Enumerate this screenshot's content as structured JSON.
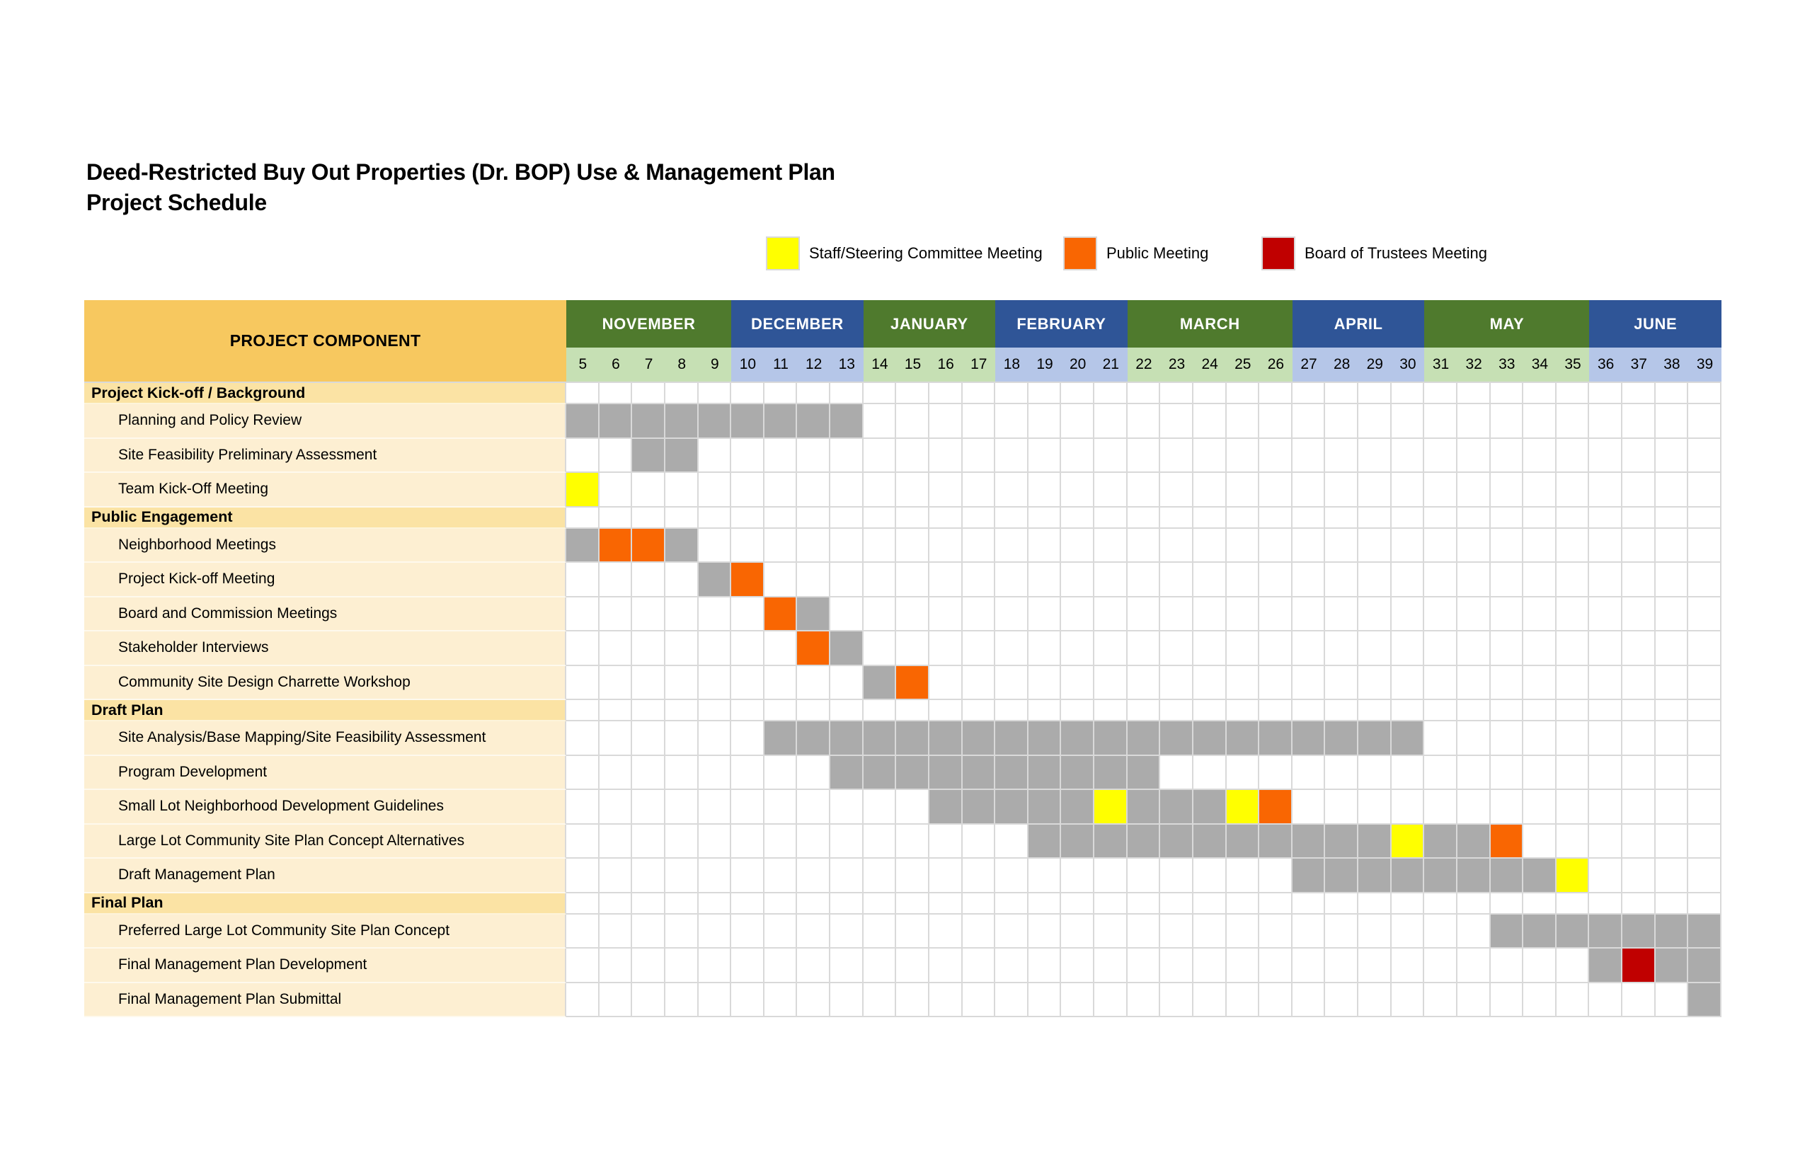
{
  "header": {
    "title_line1": "Deed-Restricted Buy Out Properties (Dr. BOP) Use & Management Plan",
    "title_line2": "Project Schedule"
  },
  "legend": [
    {
      "label": "Staff/Steering Committee Meeting",
      "kind": "staff"
    },
    {
      "label": "Public Meeting",
      "kind": "public"
    },
    {
      "label": "Board of Trustees Meeting",
      "kind": "trustees"
    }
  ],
  "table": {
    "component_header": "PROJECT COMPONENT",
    "months": [
      {
        "name": "NOVEMBER",
        "weeks": [
          5,
          6,
          7,
          8,
          9
        ],
        "theme": "green"
      },
      {
        "name": "DECEMBER",
        "weeks": [
          10,
          11,
          12,
          13
        ],
        "theme": "blue"
      },
      {
        "name": "JANUARY",
        "weeks": [
          14,
          15,
          16,
          17
        ],
        "theme": "green"
      },
      {
        "name": "FEBRUARY",
        "weeks": [
          18,
          19,
          20,
          21
        ],
        "theme": "blue"
      },
      {
        "name": "MARCH",
        "weeks": [
          22,
          23,
          24,
          25,
          26
        ],
        "theme": "green"
      },
      {
        "name": "APRIL",
        "weeks": [
          27,
          28,
          29,
          30
        ],
        "theme": "blue"
      },
      {
        "name": "MAY",
        "weeks": [
          31,
          32,
          33,
          34,
          35
        ],
        "theme": "green"
      },
      {
        "name": "JUNE",
        "weeks": [
          36,
          37,
          38,
          39
        ],
        "theme": "blue"
      }
    ]
  },
  "colors": {
    "month_green": "#4F7A2D",
    "month_blue": "#2F5597",
    "band_green": "#C6E0B4",
    "band_blue": "#B5C6E8",
    "component_header_bg": "#F7C85F",
    "section_bg": "#FBE3A4",
    "task_bg": "#FDEFD2",
    "grid_line": "#D9D9D9",
    "work": "#ABABAB",
    "staff": "#FFFF00",
    "public": "#F96602",
    "trustees": "#C00000"
  },
  "chart_data": {
    "type": "gantt",
    "title": "Deed-Restricted Buy Out Properties (Dr. BOP) Use & Management Plan — Project Schedule",
    "x_axis": {
      "unit": "week",
      "range": [
        5,
        39
      ],
      "months": {
        "NOVEMBER": [
          5,
          9
        ],
        "DECEMBER": [
          10,
          13
        ],
        "JANUARY": [
          14,
          17
        ],
        "FEBRUARY": [
          18,
          21
        ],
        "MARCH": [
          22,
          26
        ],
        "APRIL": [
          27,
          30
        ],
        "MAY": [
          31,
          35
        ],
        "JUNE": [
          36,
          39
        ]
      }
    },
    "legend_position": "top",
    "fill_kinds": {
      "work": "general work period (gray)",
      "staff": "Staff/Steering Committee Meeting (yellow)",
      "public": "Public Meeting (orange)",
      "trustees": "Board of Trustees Meeting (dark red)"
    },
    "sections": [
      {
        "label": "Project Kick-off / Background",
        "tasks": [
          {
            "label": "Planning and Policy Review",
            "fills": [
              {
                "start": 5,
                "end": 13,
                "kind": "work"
              }
            ]
          },
          {
            "label": "Site Feasibility Preliminary Assessment",
            "fills": [
              {
                "start": 7,
                "end": 8,
                "kind": "work"
              }
            ]
          },
          {
            "label": "Team Kick-Off Meeting",
            "fills": [
              {
                "start": 5,
                "end": 5,
                "kind": "staff"
              }
            ]
          }
        ]
      },
      {
        "label": "Public Engagement",
        "tasks": [
          {
            "label": "Neighborhood Meetings",
            "fills": [
              {
                "start": 5,
                "end": 5,
                "kind": "work"
              },
              {
                "start": 6,
                "end": 7,
                "kind": "public"
              },
              {
                "start": 8,
                "end": 8,
                "kind": "work"
              }
            ]
          },
          {
            "label": "Project Kick-off Meeting",
            "fills": [
              {
                "start": 9,
                "end": 9,
                "kind": "work"
              },
              {
                "start": 10,
                "end": 10,
                "kind": "public"
              }
            ]
          },
          {
            "label": "Board and Commission Meetings",
            "fills": [
              {
                "start": 11,
                "end": 11,
                "kind": "public"
              },
              {
                "start": 12,
                "end": 12,
                "kind": "work"
              }
            ]
          },
          {
            "label": "Stakeholder Interviews",
            "fills": [
              {
                "start": 12,
                "end": 12,
                "kind": "public"
              },
              {
                "start": 13,
                "end": 13,
                "kind": "work"
              }
            ]
          },
          {
            "label": "Community Site Design Charrette Workshop",
            "fills": [
              {
                "start": 14,
                "end": 14,
                "kind": "work"
              },
              {
                "start": 15,
                "end": 15,
                "kind": "public"
              }
            ]
          }
        ]
      },
      {
        "label": "Draft Plan",
        "tasks": [
          {
            "label": "Site Analysis/Base Mapping/Site Feasibility Assessment",
            "fills": [
              {
                "start": 11,
                "end": 30,
                "kind": "work"
              }
            ]
          },
          {
            "label": "Program Development",
            "fills": [
              {
                "start": 13,
                "end": 22,
                "kind": "work"
              }
            ]
          },
          {
            "label": "Small Lot Neighborhood Development Guidelines",
            "fills": [
              {
                "start": 16,
                "end": 20,
                "kind": "work"
              },
              {
                "start": 21,
                "end": 21,
                "kind": "staff"
              },
              {
                "start": 22,
                "end": 24,
                "kind": "work"
              },
              {
                "start": 25,
                "end": 25,
                "kind": "staff"
              },
              {
                "start": 26,
                "end": 26,
                "kind": "public"
              }
            ]
          },
          {
            "label": "Large Lot Community Site Plan Concept Alternatives",
            "fills": [
              {
                "start": 19,
                "end": 29,
                "kind": "work"
              },
              {
                "start": 30,
                "end": 30,
                "kind": "staff"
              },
              {
                "start": 31,
                "end": 32,
                "kind": "work"
              },
              {
                "start": 33,
                "end": 33,
                "kind": "public"
              }
            ]
          },
          {
            "label": "Draft Management Plan",
            "fills": [
              {
                "start": 27,
                "end": 34,
                "kind": "work"
              },
              {
                "start": 35,
                "end": 35,
                "kind": "staff"
              }
            ]
          }
        ]
      },
      {
        "label": "Final Plan",
        "tasks": [
          {
            "label": "Preferred Large Lot Community Site Plan Concept",
            "fills": [
              {
                "start": 33,
                "end": 39,
                "kind": "work"
              }
            ]
          },
          {
            "label": "Final Management Plan Development",
            "fills": [
              {
                "start": 36,
                "end": 36,
                "kind": "work"
              },
              {
                "start": 37,
                "end": 37,
                "kind": "trustees"
              },
              {
                "start": 38,
                "end": 39,
                "kind": "work"
              }
            ]
          },
          {
            "label": "Final Management Plan Submittal",
            "fills": [
              {
                "start": 39,
                "end": 39,
                "kind": "work"
              }
            ]
          }
        ]
      }
    ]
  }
}
